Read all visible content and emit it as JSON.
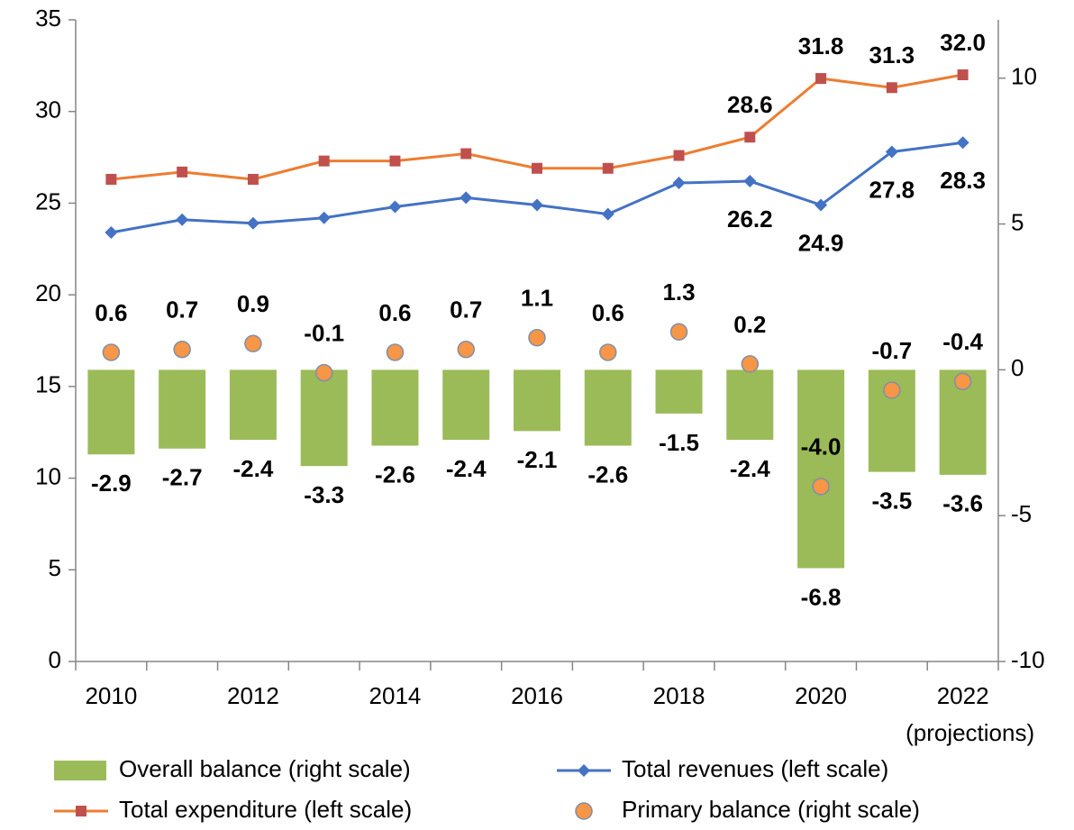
{
  "chart_data": {
    "type": "bar_line_dual",
    "categories": [
      "2010",
      null,
      "2012",
      null,
      "2014",
      null,
      "2016",
      null,
      "2018",
      null,
      "2020",
      null,
      "2022"
    ],
    "annotations": [
      "(projections)"
    ],
    "ylim": [
      0,
      35
    ],
    "yticks": [
      0,
      5,
      10,
      15,
      20,
      25,
      30,
      35
    ],
    "y2lim": [
      -10,
      12
    ],
    "y2ticks": [
      -10,
      -5,
      0,
      5,
      10
    ],
    "grid": false,
    "legend": "bottom",
    "series": [
      {
        "name": "Overall balance (right scale)",
        "type": "bar",
        "axis": "y2",
        "color": "#9bbb59",
        "values": [
          -2.9,
          -2.7,
          -2.4,
          -3.3,
          -2.6,
          -2.4,
          -2.1,
          -2.6,
          -1.5,
          -2.4,
          -6.8,
          -3.5,
          -3.6
        ]
      },
      {
        "name": "Total revenues (left scale)",
        "type": "line",
        "marker": "diamond",
        "color": "#4472c4",
        "values": [
          23.4,
          24.1,
          23.9,
          24.2,
          24.8,
          25.3,
          24.9,
          24.4,
          26.1,
          26.2,
          24.9,
          27.8,
          28.3
        ],
        "value_labels": [
          null,
          null,
          null,
          null,
          null,
          null,
          null,
          null,
          null,
          "26.2",
          "24.9",
          "27.8",
          "28.3"
        ]
      },
      {
        "name": "Total expenditure (left scale)",
        "type": "line",
        "marker": "square",
        "color": "#ed7d31",
        "values": [
          26.3,
          26.7,
          26.3,
          27.3,
          27.3,
          27.7,
          26.9,
          26.9,
          27.6,
          28.6,
          31.8,
          31.3,
          32.0
        ],
        "value_labels": [
          null,
          null,
          null,
          null,
          null,
          null,
          null,
          null,
          null,
          "28.6",
          "31.8",
          "31.3",
          "32.0"
        ]
      },
      {
        "name": "Primary balance (right scale)",
        "type": "scatter",
        "axis": "y2",
        "color": "#f79646",
        "values": [
          0.6,
          0.7,
          0.9,
          -0.1,
          0.6,
          0.7,
          1.1,
          0.6,
          1.3,
          0.2,
          -4.0,
          -0.7,
          -0.4
        ],
        "value_labels": [
          "0.6",
          "0.7",
          "0.9",
          "-0.1",
          "0.6",
          "0.7",
          "1.1",
          "0.6",
          "1.3",
          "0.2",
          "-4.0",
          "-0.7",
          "-0.4"
        ]
      }
    ]
  }
}
